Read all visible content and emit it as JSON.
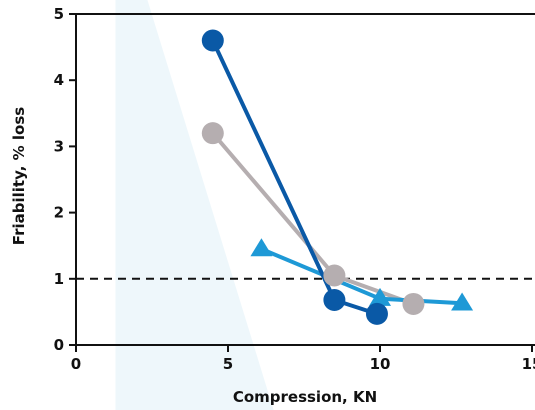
{
  "chart_data": {
    "type": "line",
    "title": "",
    "xlabel": "Compression, KN",
    "ylabel": "Friability, % loss",
    "xlim": [
      0,
      15
    ],
    "ylim": [
      0,
      5
    ],
    "x_ticks": [
      "0",
      "5",
      "10",
      "15"
    ],
    "y_ticks": [
      "0",
      "1",
      "2",
      "3",
      "4",
      "5"
    ],
    "grid": false,
    "legend": "none",
    "reference_line": {
      "y": 1,
      "style": "dashed",
      "color": "#111111"
    },
    "background_band": {
      "color": "#eef7fb"
    },
    "series": [
      {
        "marker": "circle",
        "color": "#0a59a6",
        "points": [
          [
            4.5,
            4.6
          ],
          [
            8.5,
            0.68
          ],
          [
            9.9,
            0.47
          ]
        ]
      },
      {
        "marker": "circle",
        "color": "#b5aeb0",
        "points": [
          [
            4.5,
            3.2
          ],
          [
            8.5,
            1.05
          ],
          [
            11.1,
            0.62
          ]
        ]
      },
      {
        "marker": "triangle",
        "color": "#1e99d6",
        "points": [
          [
            6.1,
            1.45
          ],
          [
            10.0,
            0.7
          ],
          [
            12.7,
            0.63
          ]
        ]
      }
    ]
  }
}
